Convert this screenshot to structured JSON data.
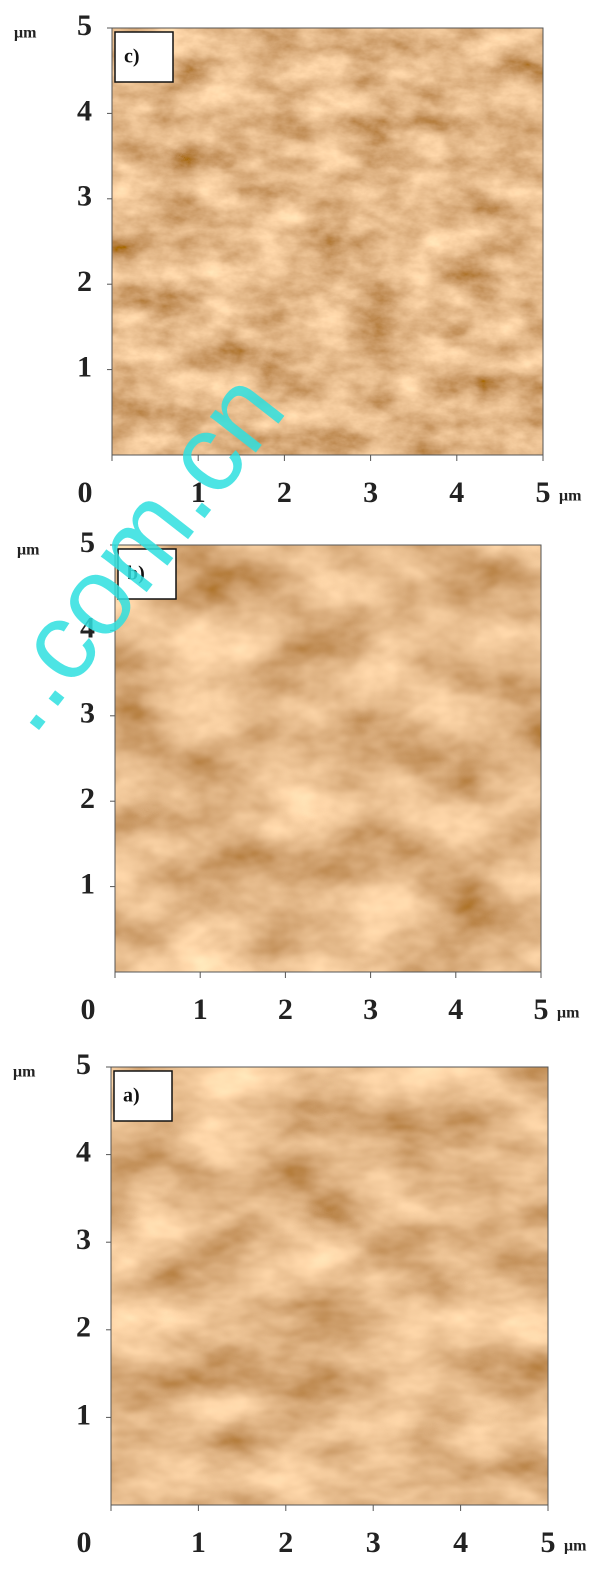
{
  "panels": [
    {
      "label": "c)",
      "x_ticks": [
        0,
        1,
        2,
        3,
        4,
        5
      ],
      "y_ticks": [
        1,
        2,
        3,
        4,
        5
      ],
      "x_unit": "μm",
      "y_unit": "μm"
    },
    {
      "label": "b)",
      "x_ticks": [
        0,
        1,
        2,
        3,
        4,
        5
      ],
      "y_ticks": [
        1,
        2,
        3,
        4,
        5
      ],
      "x_unit": "μm",
      "y_unit": "μm"
    },
    {
      "label": "a)",
      "x_ticks": [
        0,
        1,
        2,
        3,
        4,
        5
      ],
      "y_ticks": [
        1,
        2,
        3,
        4,
        5
      ],
      "x_unit": "μm",
      "y_unit": "μm"
    }
  ],
  "watermark": "..com.cn"
}
